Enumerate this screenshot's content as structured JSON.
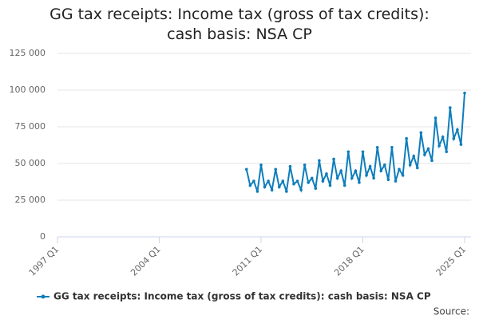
{
  "chart_data": {
    "type": "line",
    "title": "GG tax receipts: Income tax (gross of tax credits): cash basis: NSA CP",
    "source": "Source:",
    "categories": [
      "1997 Q1",
      null,
      null,
      null,
      null,
      null,
      null,
      null,
      null,
      null,
      null,
      null,
      null,
      null,
      null,
      null,
      null,
      null,
      null,
      null,
      null,
      null,
      null,
      null,
      null,
      null,
      null,
      null,
      "2004 Q1",
      null,
      null,
      null,
      null,
      null,
      null,
      null,
      null,
      null,
      null,
      null,
      null,
      null,
      null,
      null,
      null,
      null,
      null,
      null,
      null,
      null,
      null,
      null,
      null,
      null,
      null,
      null,
      "2011 Q1",
      null,
      null,
      null,
      null,
      null,
      null,
      null,
      null,
      null,
      null,
      null,
      null,
      null,
      null,
      null,
      null,
      null,
      null,
      null,
      null,
      null,
      null,
      null,
      null,
      null,
      null,
      null,
      "2018 Q1",
      null,
      null,
      null,
      null,
      null,
      null,
      null,
      null,
      null,
      null,
      null,
      null,
      null,
      null,
      null,
      null,
      null,
      null,
      null,
      null,
      null,
      null,
      null,
      null,
      null,
      null,
      null,
      "2025 Q1"
    ],
    "series": [
      {
        "name": "GG tax receipts: Income tax (gross of tax credits): cash basis: NSA CP",
        "color": "#0e7dbb",
        "values": [
          null,
          null,
          null,
          null,
          null,
          null,
          null,
          null,
          null,
          null,
          null,
          null,
          null,
          null,
          null,
          null,
          null,
          null,
          null,
          null,
          null,
          null,
          null,
          null,
          null,
          null,
          null,
          null,
          null,
          null,
          null,
          null,
          null,
          null,
          null,
          null,
          null,
          null,
          null,
          null,
          null,
          null,
          null,
          null,
          null,
          null,
          null,
          null,
          null,
          null,
          null,
          null,
          46000,
          35000,
          38000,
          31000,
          49000,
          34000,
          38000,
          32000,
          46000,
          34000,
          38000,
          31000,
          48000,
          36000,
          38000,
          32000,
          49000,
          37000,
          40000,
          33000,
          52000,
          38000,
          43000,
          35000,
          53000,
          40000,
          45000,
          35000,
          58000,
          40000,
          45000,
          37000,
          58000,
          42000,
          48000,
          40000,
          61000,
          45000,
          49000,
          39000,
          61000,
          38000,
          46000,
          42000,
          67000,
          49000,
          55000,
          47000,
          71000,
          56000,
          60000,
          52000,
          81000,
          62000,
          68000,
          58000,
          88000,
          67000,
          73000,
          63000,
          98000
        ]
      }
    ],
    "ylim": [
      0,
      125000
    ],
    "yticks": [
      0,
      {
        "value": 25000,
        "label": "25 000"
      },
      {
        "value": 50000,
        "label": "50 000"
      },
      {
        "value": 75000,
        "label": "75 000"
      },
      {
        "value": 100000,
        "label": "100 000"
      },
      {
        "value": 125000,
        "label": "125 000"
      }
    ],
    "grid": true
  }
}
